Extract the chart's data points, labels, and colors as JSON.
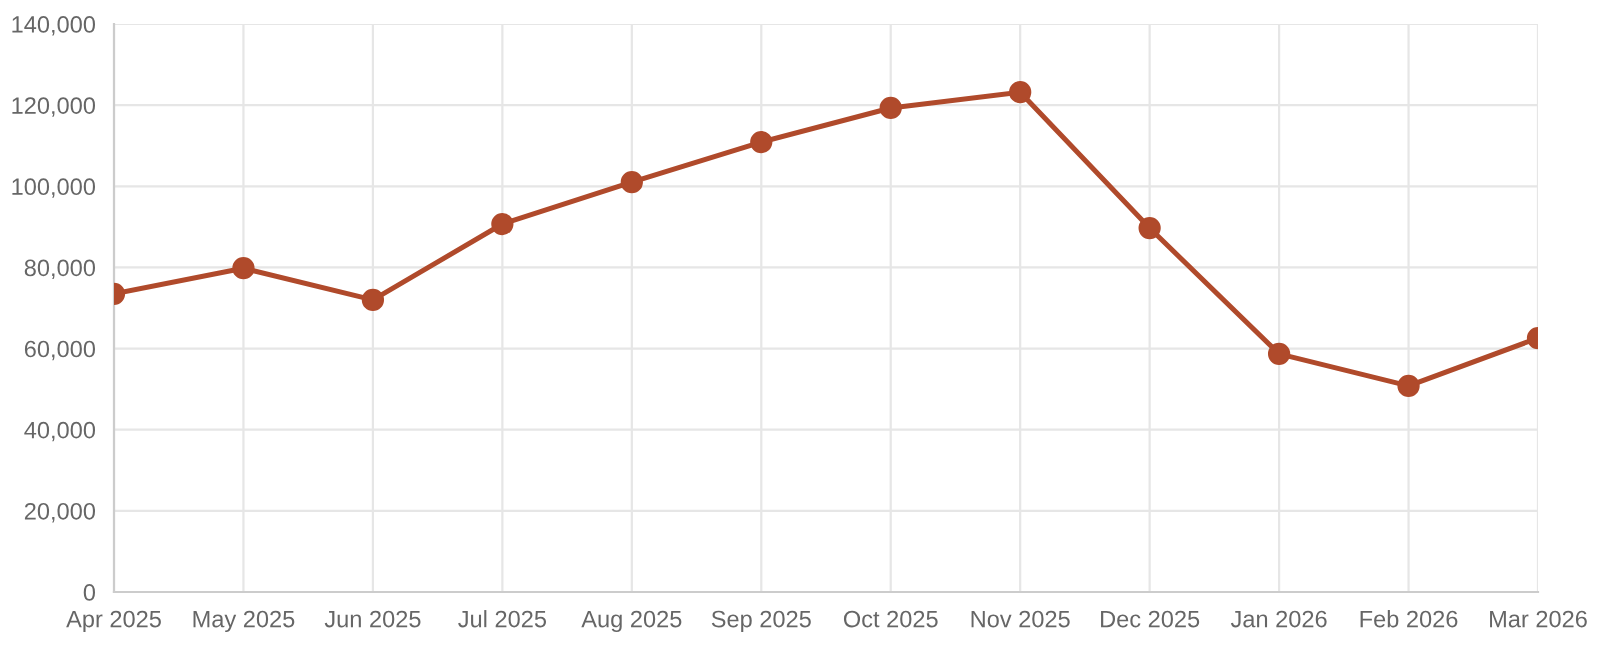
{
  "chart_data": {
    "type": "line",
    "categories": [
      "Apr 2025",
      "May 2025",
      "Jun 2025",
      "Jul 2025",
      "Aug 2025",
      "Sep 2025",
      "Oct 2025",
      "Nov 2025",
      "Dec 2025",
      "Jan 2026",
      "Feb 2026",
      "Mar 2026"
    ],
    "series": [
      {
        "color": "#b04a2b",
        "values": [
          73500,
          79800,
          72000,
          90700,
          101000,
          110900,
          119300,
          123200,
          89700,
          58700,
          50800,
          62600
        ]
      }
    ],
    "ylim": [
      0,
      140000
    ],
    "yticks": [
      {
        "value": 0,
        "label": "0"
      },
      {
        "value": 20000,
        "label": "20,000"
      },
      {
        "value": 40000,
        "label": "40,000"
      },
      {
        "value": 60000,
        "label": "60,000"
      },
      {
        "value": 80000,
        "label": "80,000"
      },
      {
        "value": 100000,
        "label": "100,000"
      },
      {
        "value": 120000,
        "label": "120,000"
      },
      {
        "value": 140000,
        "label": "140,000"
      }
    ],
    "grid": true,
    "marker": "circle",
    "line_style": "solid"
  }
}
